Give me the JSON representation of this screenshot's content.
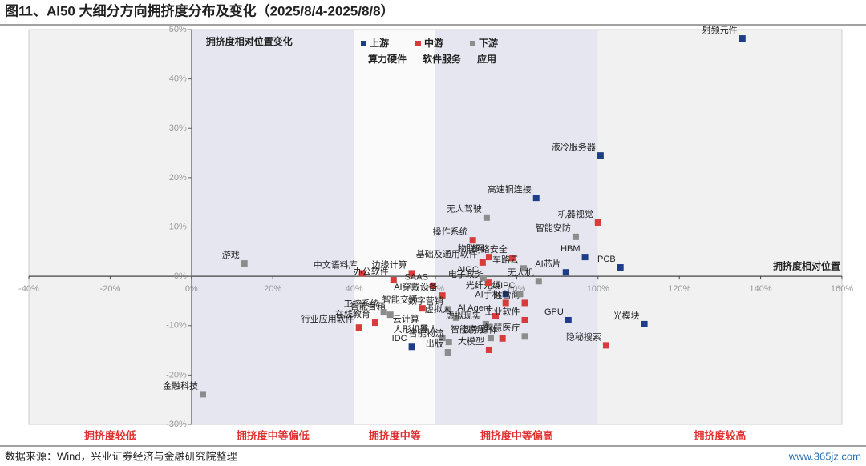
{
  "chart_data": {
    "type": "scatter",
    "title": "图11、AI50 大细分方向拥挤度分布及变化（2025/8/4-2025/8/8）",
    "legend_title": "拥挤度相对位置变化",
    "x_label": "拥挤度相对位置",
    "source": "数据来源：Wind，兴业证券经济与金融研究院整理",
    "watermark": "www.365jz.com",
    "xlim": [
      -40,
      160
    ],
    "ylim": [
      -30,
      50
    ],
    "xticks": [
      {
        "value": -40,
        "label": "-40%"
      },
      {
        "value": -20,
        "label": "-20%"
      },
      {
        "value": 0,
        "label": "0%"
      },
      {
        "value": 20,
        "label": "20%"
      },
      {
        "value": 40,
        "label": "40%"
      },
      {
        "value": 60,
        "label": "60%"
      },
      {
        "value": 80,
        "label": "80%"
      },
      {
        "value": 100,
        "label": "100%"
      },
      {
        "value": 120,
        "label": "120%"
      },
      {
        "value": 140,
        "label": "140%"
      },
      {
        "value": 160,
        "label": "160%"
      }
    ],
    "yticks": [
      {
        "value": -30,
        "label": "-30%"
      },
      {
        "value": -20,
        "label": "-20%"
      },
      {
        "value": -10,
        "label": "-10%"
      },
      {
        "value": 0,
        "label": "0%"
      },
      {
        "value": 10,
        "label": "10%"
      },
      {
        "value": 20,
        "label": "20%"
      },
      {
        "value": 30,
        "label": "30%"
      },
      {
        "value": 40,
        "label": "40%"
      },
      {
        "value": 50,
        "label": "50%"
      }
    ],
    "zones": [
      {
        "label": "拥挤度较低",
        "range": [
          -40,
          0
        ],
        "color": "#f1f1f1"
      },
      {
        "label": "拥挤度中等偏低",
        "range": [
          0,
          40
        ],
        "color": "#e6e6f1"
      },
      {
        "label": "拥挤度中等",
        "range": [
          40,
          60
        ],
        "color": "#fafafa"
      },
      {
        "label": "拥挤度中等偏高",
        "range": [
          60,
          100
        ],
        "color": "#e6e6f1"
      },
      {
        "label": "拥挤度较高",
        "range": [
          100,
          160
        ],
        "color": "#f1f1f1"
      }
    ],
    "series": [
      {
        "name": "上游",
        "group": "算力硬件",
        "color": "#1f3c88",
        "labels": [
          "射频元件",
          "液冷服务器",
          "高速铜连接",
          "HBM",
          "AI芯片",
          "PCB",
          "光模块",
          "GPU",
          "IDC",
          "光纤光缆"
        ],
        "x": [
          135.5,
          100.6,
          84.8,
          96.8,
          92.1,
          105.5,
          111.4,
          92.7,
          54.2,
          77.3
        ],
        "y": [
          48.2,
          24.5,
          15.9,
          3.9,
          0.8,
          1.8,
          -9.7,
          -8.9,
          -14.3,
          -3.6
        ]
      },
      {
        "name": "中游",
        "group": "软件服务",
        "color": "#d93a3a",
        "labels": [
          "机器视觉",
          "隐秘搜索",
          "操作系统",
          "物联网",
          "网络安全",
          "基础及通用软件",
          "边缘计算",
          "中文语料库",
          "办公软件",
          "SAAS",
          "电子政务",
          "AI穿戴设备",
          "智能交通",
          "AI手机",
          "运营商",
          "AI Agent",
          "工业软件",
          "行业应用软件",
          "在线教育",
          "数字媒体",
          "大模型"
        ],
        "x": [
          100,
          102,
          69.2,
          73.2,
          78.9,
          71.6,
          54.2,
          42,
          49.7,
          59.4,
          73,
          61.7,
          56.8,
          77.3,
          82,
          74.8,
          82,
          41.2,
          45.2,
          76.5,
          73.2
        ],
        "y": [
          10.9,
          -14,
          7.3,
          3.9,
          3.7,
          2.8,
          0.6,
          0.6,
          -0.8,
          -1.9,
          -1.3,
          -3.9,
          -6.5,
          -5.4,
          -5.4,
          -8.1,
          -8.9,
          -10.4,
          -9.4,
          -12.6,
          -14.9
        ]
      },
      {
        "name": "下游",
        "group": "应用",
        "color": "#8c8c8c",
        "labels": [
          "游戏",
          "金融科技",
          "无人驾驶",
          "智能安防",
          "车路云",
          "无人机",
          "AIGC",
          "AIPC",
          "数字营销",
          "虚拟人",
          "虚拟现实",
          "云计算",
          "智能音箱",
          "工控系统",
          "人形机器人",
          "智能物流",
          "出版",
          "智能家居",
          "智慧医疗"
        ],
        "x": [
          13,
          2.8,
          72.6,
          94.5,
          81.7,
          85.4,
          71.8,
          80.8,
          63.1,
          65.1,
          72.4,
          57.2,
          48.9,
          47.3,
          61.7,
          63.3,
          63.1,
          73.6,
          82
        ],
        "y": [
          2.6,
          -23.9,
          11.9,
          8,
          1.6,
          -1,
          -0.3,
          -3.6,
          -6.7,
          -8.4,
          -9.7,
          -10.4,
          -7.8,
          -7.3,
          -12.5,
          -13.3,
          -15.4,
          -12.5,
          -12.2
        ]
      }
    ]
  }
}
